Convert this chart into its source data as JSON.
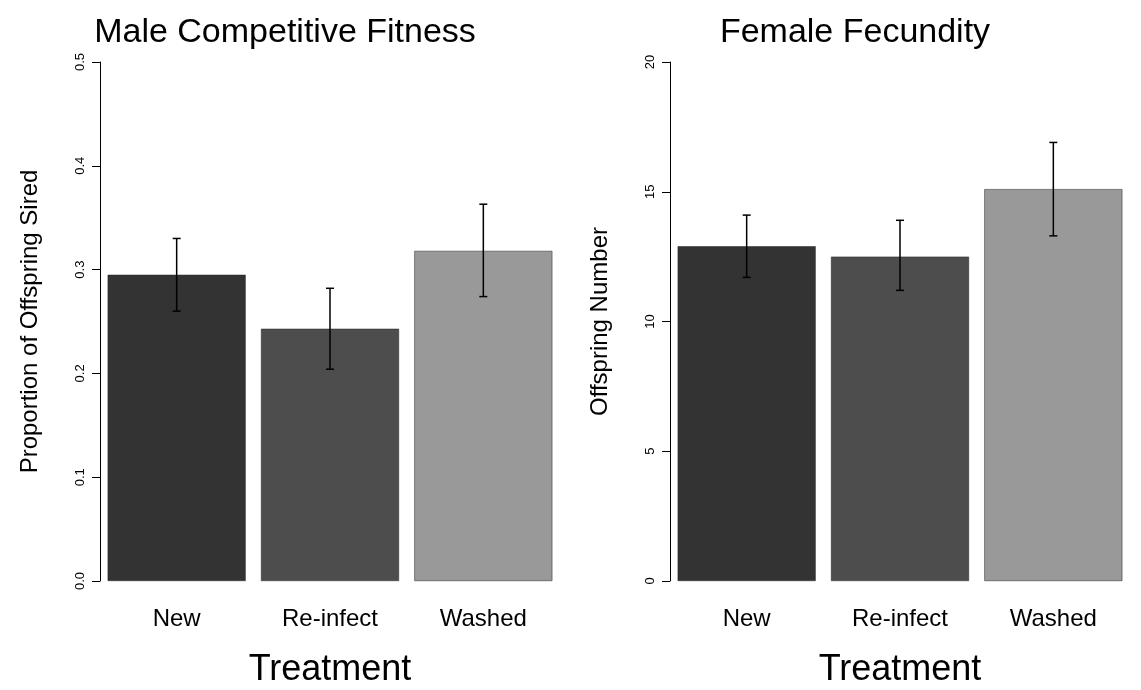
{
  "chart_data": [
    {
      "type": "bar",
      "title": "Male Competitive Fitness",
      "xlabel": "Treatment",
      "ylabel": "Proportion of Offspring Sired",
      "categories": [
        "New",
        "Re-infect",
        "Washed"
      ],
      "values": [
        0.295,
        0.243,
        0.318
      ],
      "colors": [
        "#333333",
        "#4d4d4d",
        "#999999"
      ],
      "errors": [
        [
          0.26,
          0.33
        ],
        [
          0.204,
          0.282
        ],
        [
          0.274,
          0.363
        ]
      ],
      "ylim": [
        0,
        0.5
      ],
      "yticks": [
        {
          "value": 0,
          "label": "0.0"
        },
        0.1,
        0.2,
        0.3,
        0.4,
        0.5
      ],
      "grid": false
    },
    {
      "type": "bar",
      "title": "Female Fecundity",
      "xlabel": "Treatment",
      "ylabel": "Offspring Number",
      "categories": [
        "New",
        "Re-infect",
        "Washed"
      ],
      "values": [
        12.9,
        12.5,
        15.1
      ],
      "colors": [
        "#333333",
        "#4d4d4d",
        "#999999"
      ],
      "errors": [
        [
          11.7,
          14.1
        ],
        [
          11.2,
          13.9
        ],
        [
          13.3,
          16.9
        ]
      ],
      "ylim": [
        0,
        20
      ],
      "yticks": [
        0,
        5,
        10,
        15,
        20
      ],
      "grid": false
    }
  ]
}
